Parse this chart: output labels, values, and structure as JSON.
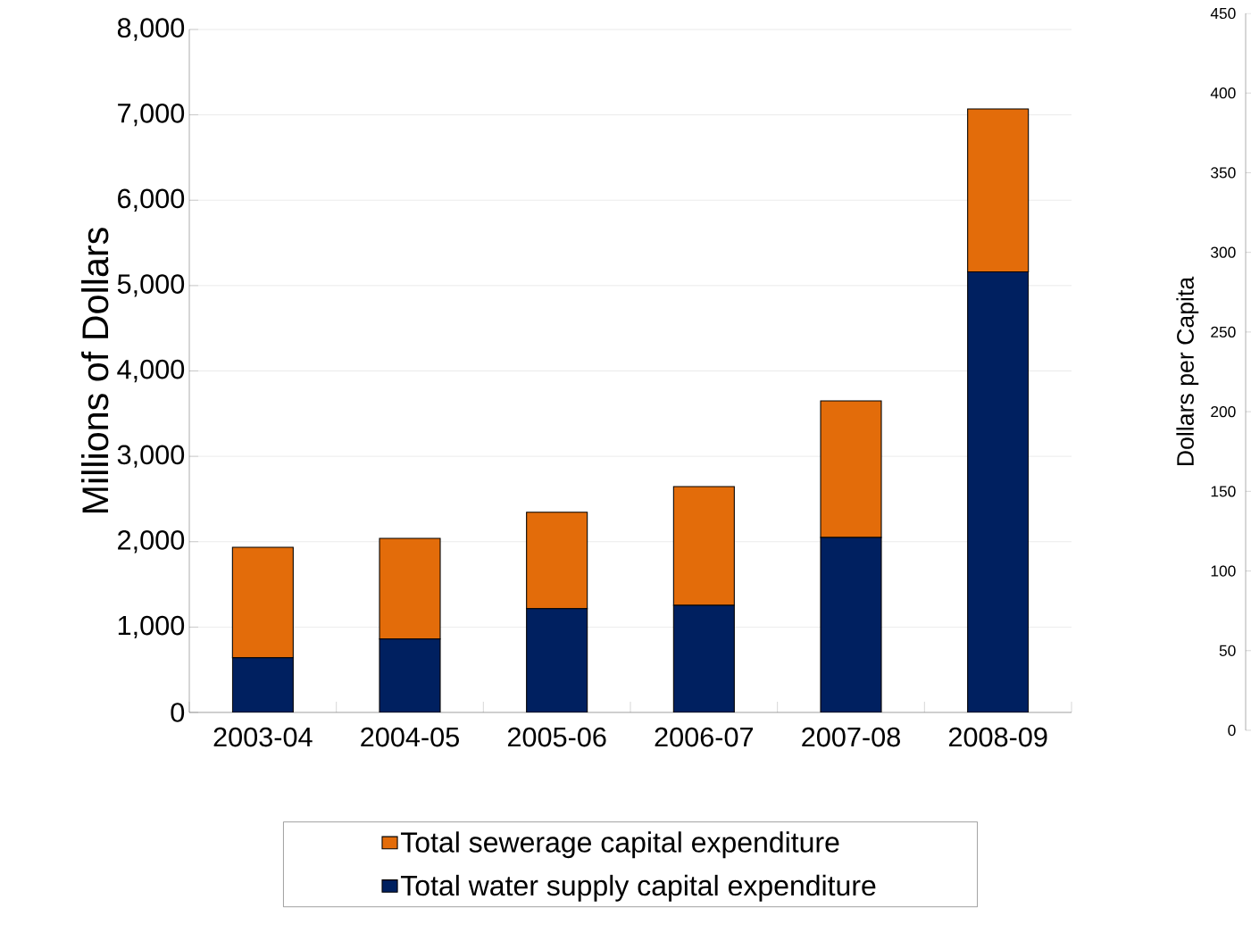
{
  "chart_data": {
    "type": "bar",
    "stacked": true,
    "categories": [
      "2003-04",
      "2004-05",
      "2005-06",
      "2006-07",
      "2007-08",
      "2008-09"
    ],
    "series": [
      {
        "name": "Total water supply capital expenditure",
        "color": "#002060",
        "values": [
          640,
          860,
          1215,
          1255,
          2050,
          5160
        ]
      },
      {
        "name": "Total sewerage capital expenditure",
        "color": "#e36c0a",
        "values": [
          1295,
          1180,
          1130,
          1390,
          1600,
          1910
        ]
      }
    ],
    "ylabel": "Millions of Dollars",
    "y2label": "Dollars per Capita",
    "ylim": [
      0,
      8000
    ],
    "yticks": [
      {
        "value": 0,
        "label": "0"
      },
      {
        "value": 1000,
        "label": "1,000"
      },
      {
        "value": 2000,
        "label": "2,000"
      },
      {
        "value": 3000,
        "label": "3,000"
      },
      {
        "value": 4000,
        "label": "4,000"
      },
      {
        "value": 5000,
        "label": "5,000"
      },
      {
        "value": 6000,
        "label": "6,000"
      },
      {
        "value": 7000,
        "label": "7,000"
      },
      {
        "value": 8000,
        "label": "8,000"
      }
    ],
    "y2lim": [
      0,
      450
    ],
    "y2ticks": [
      0,
      50,
      100,
      150,
      200,
      250,
      300,
      350,
      400,
      450
    ],
    "grid": "y",
    "legend": "bottom"
  }
}
